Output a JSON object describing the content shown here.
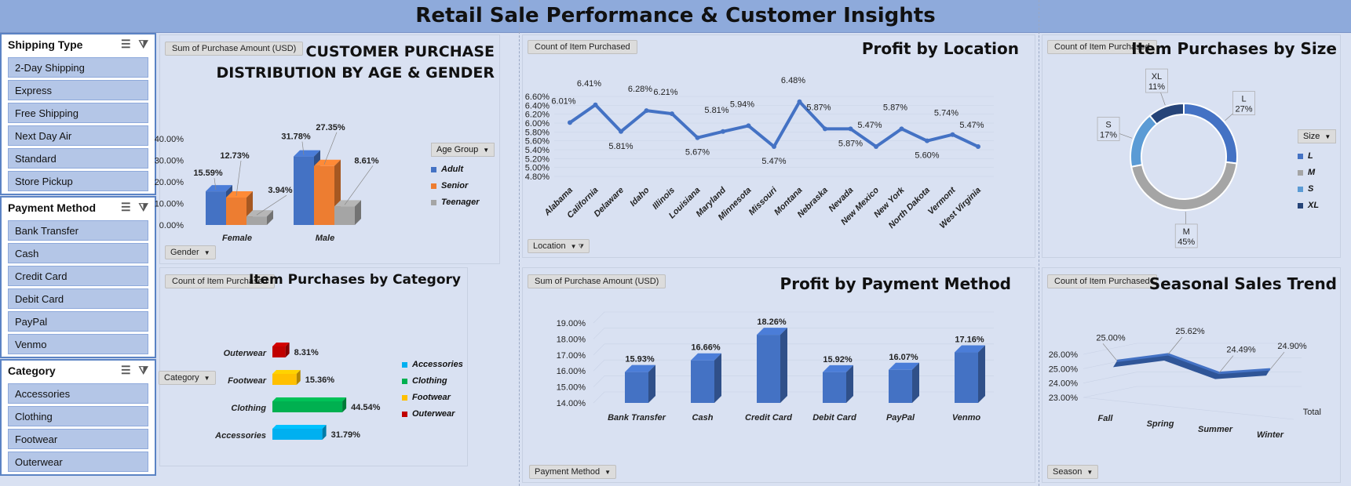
{
  "title": "Retail Sale Performance & Customer Insights",
  "slicers": [
    {
      "title": "Shipping Type",
      "items": [
        "2-Day Shipping",
        "Express",
        "Free Shipping",
        "Next Day Air",
        "Standard",
        "Store Pickup"
      ]
    },
    {
      "title": "Payment Method",
      "items": [
        "Bank Transfer",
        "Cash",
        "Credit Card",
        "Debit Card",
        "PayPal",
        "Venmo"
      ]
    },
    {
      "title": "Category",
      "items": [
        "Accessories",
        "Clothing",
        "Footwear",
        "Outerwear"
      ]
    }
  ],
  "age_gender": {
    "value_field": "Sum of Purchase Amount (USD)",
    "title_line1": "CUSTOMER PURCHASE",
    "title_line2": "DISTRIBUTION BY AGE & GENDER",
    "legend_title": "Age Group",
    "axis_filter": "Gender"
  },
  "location": {
    "value_field": "Count of Item Purchased",
    "title": "Profit by Location",
    "axis_filter": "Location"
  },
  "size": {
    "value_field": "Count of Item Purchased",
    "title": "Item Purchases by Size",
    "legend_title": "Size"
  },
  "category": {
    "value_field": "Count of Item Purchased",
    "title": "Item Purchases by Category",
    "axis_filter": "Category"
  },
  "payment": {
    "value_field": "Sum of Purchase Amount (USD)",
    "title": "Profit by Payment Method",
    "axis_filter": "Payment Method"
  },
  "season": {
    "value_field": "Count of Item Purchased",
    "title": "Seasonal Sales Trend",
    "axis_filter": "Season",
    "depth_label": "Total"
  },
  "colors": {
    "blue": "#4472c4",
    "orange": "#ed7d31",
    "gray": "#a5a5a5",
    "darkblue": "#264478",
    "lightblue": "#5b9bd5",
    "green": "#00b050",
    "yellow": "#ffc000",
    "red": "#c00000",
    "cyan": "#00b0f0"
  },
  "chart_data": [
    {
      "type": "bar",
      "name": "age_gender",
      "categories": [
        "Female",
        "Male"
      ],
      "series": [
        {
          "name": "Adult",
          "values": [
            15.59,
            31.78
          ],
          "labels": [
            "15.59%",
            "31.78%"
          ]
        },
        {
          "name": "Senior",
          "values": [
            12.73,
            27.35
          ],
          "labels": [
            "12.73%",
            "27.35%"
          ]
        },
        {
          "name": "Teenager",
          "values": [
            3.94,
            8.61
          ],
          "labels": [
            "3.94%",
            "8.61%"
          ]
        }
      ],
      "yticks": [
        "0.00%",
        "10.00%",
        "20.00%",
        "30.00%",
        "40.00%"
      ],
      "ylim": [
        0,
        40
      ]
    },
    {
      "type": "line",
      "name": "location",
      "categories": [
        "Alabama",
        "California",
        "Delaware",
        "Idaho",
        "Illinois",
        "Louisiana",
        "Maryland",
        "Minnesota",
        "Missouri",
        "Montana",
        "Nebraska",
        "Nevada",
        "New Mexico",
        "New York",
        "North Dakota",
        "Vermont",
        "West Virginia"
      ],
      "values": [
        6.01,
        6.41,
        5.81,
        6.28,
        6.21,
        5.67,
        5.81,
        5.94,
        5.47,
        6.48,
        5.87,
        5.87,
        5.47,
        5.87,
        5.6,
        5.74,
        5.47
      ],
      "labels": [
        "6.01%",
        "6.41%",
        "5.81%",
        "6.28%",
        "6.21%",
        "5.67%",
        "5.81%",
        "5.94%",
        "5.47%",
        "6.48%",
        "5.87%",
        "5.87%",
        "5.47%",
        "5.87%",
        "5.60%",
        "5.74%",
        "5.47%"
      ],
      "yticks": [
        "4.80%",
        "5.00%",
        "5.20%",
        "5.40%",
        "5.60%",
        "5.80%",
        "6.00%",
        "6.20%",
        "6.40%",
        "6.60%"
      ],
      "ylim": [
        4.8,
        6.6
      ]
    },
    {
      "type": "pie",
      "name": "size",
      "categories": [
        "L",
        "M",
        "S",
        "XL"
      ],
      "values": [
        27,
        45,
        17,
        11
      ],
      "labels": [
        "L\n27%",
        "M\n45%",
        "S\n17%",
        "XL\n11%"
      ]
    },
    {
      "type": "bar",
      "name": "category",
      "categories": [
        "Accessories",
        "Clothing",
        "Footwear",
        "Outerwear"
      ],
      "values": [
        31.79,
        44.54,
        15.36,
        8.31
      ],
      "labels": [
        "31.79%",
        "44.54%",
        "15.36%",
        "8.31%"
      ]
    },
    {
      "type": "bar",
      "name": "payment",
      "categories": [
        "Bank Transfer",
        "Cash",
        "Credit Card",
        "Debit Card",
        "PayPal",
        "Venmo"
      ],
      "values": [
        15.93,
        16.66,
        18.26,
        15.92,
        16.07,
        17.16
      ],
      "labels": [
        "15.93%",
        "16.66%",
        "18.26%",
        "15.92%",
        "16.07%",
        "17.16%"
      ],
      "yticks": [
        "14.00%",
        "15.00%",
        "16.00%",
        "17.00%",
        "18.00%",
        "19.00%"
      ],
      "ylim": [
        14,
        19
      ]
    },
    {
      "type": "line",
      "name": "season",
      "categories": [
        "Fall",
        "Spring",
        "Summer",
        "Winter"
      ],
      "values": [
        25.0,
        25.62,
        24.49,
        24.9
      ],
      "labels": [
        "25.00%",
        "25.62%",
        "24.49%",
        "24.90%"
      ],
      "yticks": [
        "23.00%",
        "24.00%",
        "25.00%",
        "26.00%"
      ],
      "ylim": [
        23,
        26
      ]
    }
  ]
}
